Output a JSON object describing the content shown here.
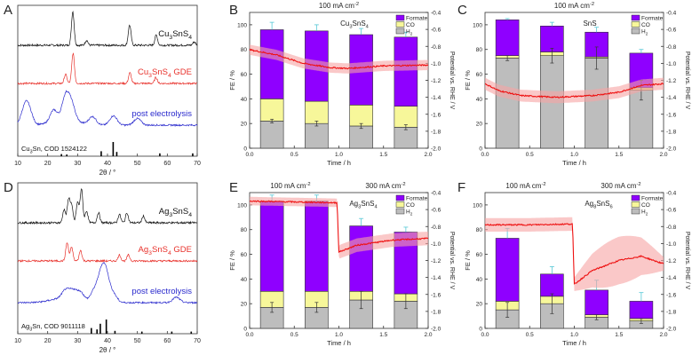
{
  "colors": {
    "formate": "#8f00ff",
    "co": "#f7f79a",
    "h2": "#bdbdbd",
    "potential": "#ee1111",
    "potential_band": "#f6a3a3",
    "xrd_ref": "#111111",
    "xrd_gde": "#e8302a",
    "xrd_post": "#2a2acd",
    "err": "#55c7d6"
  },
  "chart_data": [
    {
      "panel": "A",
      "type": "line",
      "subtype": "xrd",
      "xlabel": "2θ / °",
      "xlim": [
        10,
        70
      ],
      "xticks": [
        "10",
        "20",
        "30",
        "40",
        "50",
        "60",
        "70"
      ],
      "series": [
        {
          "name": "Cu3SnS4",
          "label_main": "Cu",
          "label_sub": "3",
          "label_rest": "SnS",
          "label_sub2": "4",
          "label_after": "",
          "label_color": "xrd_ref",
          "peaks": [
            [
              28.4,
              1.0
            ],
            [
              33.0,
              0.15
            ],
            [
              47.4,
              0.6
            ],
            [
              56.3,
              0.3
            ],
            [
              69.0,
              0.1
            ]
          ]
        },
        {
          "name": "Cu3SnS4 GDE",
          "label_main": "Cu",
          "label_sub": "3",
          "label_rest": "SnS",
          "label_sub2": "4",
          "label_after": " GDE",
          "label_color": "xrd_gde",
          "peaks": [
            [
              26.0,
              0.3
            ],
            [
              28.5,
              1.0
            ],
            [
              47.5,
              0.35
            ],
            [
              56.2,
              0.2
            ]
          ]
        },
        {
          "name": "post electrolysis",
          "label_main": "post electrolysis",
          "label_sub": "",
          "label_rest": "",
          "label_sub2": "",
          "label_after": "",
          "label_color": "xrd_post",
          "peaks": [
            [
              12.0,
              0.35
            ],
            [
              13.0,
              0.45
            ],
            [
              14.0,
              0.3
            ],
            [
              22.0,
              0.45
            ],
            [
              26.0,
              0.9
            ],
            [
              28.0,
              0.6
            ],
            [
              35.0,
              0.3
            ],
            [
              42.0,
              0.35
            ],
            [
              50.0,
              0.25
            ]
          ]
        }
      ],
      "reference": {
        "main": "Cu",
        "sub": "3",
        "rest": "Sn, COD 1524122",
        "sticks": [
          [
            37.9,
            0.35
          ],
          [
            41.9,
            1.0
          ],
          [
            43.1,
            0.3
          ],
          [
            57.5,
            0.2
          ],
          [
            68.5,
            0.2
          ],
          [
            24.6,
            0.15
          ],
          [
            26.4,
            0.12
          ]
        ]
      }
    },
    {
      "panel": "B",
      "type": "bar",
      "header": "100 mA cm",
      "header_sup": "-2",
      "inset": {
        "main": "Cu",
        "sub": "3",
        "rest": "SnS",
        "sub2": "4"
      },
      "xlabel": "Time / h",
      "ylabel": "FE / %",
      "ylabel2": "Potential vs. RHE / V",
      "xlim": [
        0,
        2
      ],
      "ylim": [
        0,
        110
      ],
      "y2lim": [
        -2.0,
        -0.4
      ],
      "xticks": [
        "0.0",
        "0.5",
        "1.0",
        "1.5",
        "2.0"
      ],
      "yticks": [
        "0",
        "20",
        "40",
        "60",
        "80",
        "100"
      ],
      "y2ticks": [
        "-0.4",
        "-0.6",
        "-0.8",
        "-1.0",
        "-1.2",
        "-1.4",
        "-1.6",
        "-1.8",
        "-2.0"
      ],
      "bar_x": [
        0.25,
        0.75,
        1.25,
        1.75
      ],
      "h2": [
        22,
        20,
        18,
        17
      ],
      "co": [
        18,
        18,
        17,
        17
      ],
      "formate": [
        56,
        57,
        57,
        56
      ],
      "err_total": [
        6,
        5,
        5,
        4
      ],
      "err_h2": [
        1.5,
        2,
        2,
        2
      ],
      "potential": [
        [
          0,
          -0.84
        ],
        [
          0.3,
          -0.9
        ],
        [
          0.6,
          -1.0
        ],
        [
          0.9,
          -1.05
        ],
        [
          1.1,
          -1.06
        ],
        [
          1.5,
          -1.03
        ],
        [
          2.0,
          -1.02
        ]
      ],
      "band_width": 0.06,
      "legend": [
        "Formate",
        "CO",
        "H"
      ],
      "legend_sub": [
        "",
        "",
        "2"
      ],
      "show_legend": true,
      "step_at": null
    },
    {
      "panel": "C",
      "type": "bar",
      "header": "100 mA cm",
      "header_sup": "-2",
      "inset": {
        "main": "SnS",
        "sub": "",
        "rest": "",
        "sub2": ""
      },
      "xlabel": "Time / h",
      "ylabel": "FE / %",
      "ylabel2": "Potential vs. RHE / V",
      "xlim": [
        0,
        2
      ],
      "ylim": [
        0,
        110
      ],
      "y2lim": [
        -2.0,
        -0.4
      ],
      "xticks": [
        "0.0",
        "0.5",
        "1.0",
        "1.5",
        "2.0"
      ],
      "yticks": [
        "0",
        "20",
        "40",
        "60",
        "80",
        "100"
      ],
      "y2ticks": [
        "-0.4",
        "-0.6",
        "-0.8",
        "-1.0",
        "-1.2",
        "-1.4",
        "-1.6",
        "-1.8",
        "-2.0"
      ],
      "bar_x": [
        0.25,
        0.75,
        1.25,
        1.75
      ],
      "h2": [
        73,
        75,
        73,
        47
      ],
      "co": [
        2,
        3,
        1,
        2
      ],
      "formate": [
        29,
        21,
        20,
        28
      ],
      "err_total": [
        1,
        3,
        4,
        3
      ],
      "err_h2": [
        2,
        6,
        9,
        8
      ],
      "potential": [
        [
          0,
          -1.24
        ],
        [
          0.15,
          -1.32
        ],
        [
          0.4,
          -1.38
        ],
        [
          0.8,
          -1.4
        ],
        [
          1.2,
          -1.38
        ],
        [
          1.5,
          -1.34
        ],
        [
          1.75,
          -1.26
        ],
        [
          2.0,
          -1.24
        ]
      ],
      "band_width": 0.07,
      "legend": [
        "Formate",
        "CO",
        "H"
      ],
      "legend_sub": [
        "",
        "",
        "2"
      ],
      "show_legend": true,
      "step_at": null
    },
    {
      "panel": "D",
      "type": "line",
      "subtype": "xrd",
      "xlabel": "2θ / °",
      "xlim": [
        10,
        70
      ],
      "xticks": [
        "10",
        "20",
        "30",
        "40",
        "50",
        "60",
        "70"
      ],
      "series": [
        {
          "name": "Ag3SnS4",
          "label_main": "Ag",
          "label_sub": "3",
          "label_rest": "SnS",
          "label_sub2": "4",
          "label_after": "",
          "label_color": "xrd_ref",
          "peaks": [
            [
              25.5,
              0.4
            ],
            [
              27.0,
              0.7
            ],
            [
              28.0,
              0.5
            ],
            [
              30.0,
              0.6
            ],
            [
              31.3,
              1.0
            ],
            [
              33.0,
              0.35
            ],
            [
              37.0,
              0.3
            ],
            [
              44.0,
              0.25
            ],
            [
              46.5,
              0.3
            ],
            [
              52.0,
              0.2
            ]
          ]
        },
        {
          "name": "Ag3SnS4 GDE",
          "label_main": "Ag",
          "label_sub": "3",
          "label_rest": "SnS",
          "label_sub2": "4",
          "label_after": " GDE",
          "label_color": "xrd_gde",
          "peaks": [
            [
              26.5,
              0.6
            ],
            [
              28.0,
              0.45
            ],
            [
              31.0,
              0.35
            ],
            [
              44.0,
              0.2
            ],
            [
              47.0,
              0.2
            ]
          ]
        },
        {
          "name": "post electrolysis",
          "label_main": "post electrolysis",
          "label_sub": "",
          "label_rest": "",
          "label_sub2": "",
          "label_after": "",
          "label_color": "xrd_post",
          "peaks": [
            [
              26.0,
              0.3
            ],
            [
              28.5,
              0.3
            ],
            [
              31.0,
              0.3
            ],
            [
              35.5,
              0.4
            ],
            [
              37.8,
              0.9
            ],
            [
              39.5,
              1.0
            ],
            [
              42.0,
              0.3
            ],
            [
              63.0,
              0.2
            ]
          ]
        }
      ],
      "reference": {
        "main": "Ag",
        "sub": "3",
        "rest": "Sn, COD 9011118",
        "sticks": [
          [
            34.6,
            0.4
          ],
          [
            37.6,
            0.7
          ],
          [
            39.6,
            1.0
          ],
          [
            42.5,
            0.2
          ],
          [
            51.5,
            0.15
          ],
          [
            61.5,
            0.15
          ],
          [
            68.0,
            0.15
          ],
          [
            36.5,
            0.3
          ]
        ]
      }
    },
    {
      "panel": "E",
      "type": "bar",
      "header": "100 mA cm",
      "header_sup": "-2",
      "header2": "300 mA cm",
      "header2_sup": "-2",
      "inset": {
        "main": "Ag",
        "sub": "3",
        "rest": "SnS",
        "sub2": "4"
      },
      "xlabel": "Time / h",
      "ylabel": "FE / %",
      "ylabel2": "Potential vs. RHE / V",
      "xlim": [
        0,
        2
      ],
      "ylim": [
        0,
        110
      ],
      "y2lim": [
        -2.0,
        -0.4
      ],
      "xticks": [
        "0.0",
        "0.5",
        "1.0",
        "1.5",
        "2.0"
      ],
      "yticks": [
        "0",
        "20",
        "40",
        "60",
        "80",
        "100"
      ],
      "y2ticks": [
        "-0.4",
        "-0.6",
        "-0.8",
        "-1.0",
        "-1.2",
        "-1.4",
        "-1.6",
        "-1.8",
        "-2.0"
      ],
      "bar_x": [
        0.25,
        0.75,
        1.25,
        1.75
      ],
      "h2": [
        17,
        17,
        23,
        22
      ],
      "co": [
        13,
        13,
        7,
        6
      ],
      "formate": [
        73,
        73,
        53,
        50
      ],
      "err_total": [
        5,
        5,
        6,
        4
      ],
      "err_h2": [
        4,
        4,
        7,
        6
      ],
      "potential": [
        [
          0,
          -0.5
        ],
        [
          0.5,
          -0.51
        ],
        [
          0.98,
          -0.52
        ],
        [
          1.0,
          -1.1
        ],
        [
          1.2,
          -1.02
        ],
        [
          1.6,
          -0.96
        ],
        [
          2.0,
          -0.94
        ]
      ],
      "band_width": 0.05,
      "legend": [
        "Formate",
        "CO",
        "H"
      ],
      "legend_sub": [
        "",
        "",
        "2"
      ],
      "show_legend": true,
      "step_at": 1.0
    },
    {
      "panel": "F",
      "type": "bar",
      "header": "100 mA cm",
      "header_sup": "-2",
      "header2": "300 mA cm",
      "header2_sup": "-2",
      "inset": {
        "main": "Ag",
        "sub": "8",
        "rest": "SnS",
        "sub2": "6"
      },
      "xlabel": "Time / h",
      "ylabel": "FE / %",
      "ylabel2": "Potential vs. RHE / V",
      "xlim": [
        0,
        2
      ],
      "ylim": [
        0,
        110
      ],
      "y2lim": [
        -2.0,
        -0.4
      ],
      "xticks": [
        "0.0",
        "0.5",
        "1.0",
        "1.5",
        "2.0"
      ],
      "yticks": [
        "0",
        "20",
        "40",
        "60",
        "80",
        "100"
      ],
      "y2ticks": [
        "-0.4",
        "-0.6",
        "-0.8",
        "-1.0",
        "-1.2",
        "-1.4",
        "-1.6",
        "-1.8",
        "-2.0"
      ],
      "bar_x": [
        0.25,
        0.75,
        1.25,
        1.75
      ],
      "h2": [
        15,
        20,
        9,
        6
      ],
      "co": [
        7,
        6,
        2,
        2
      ],
      "formate": [
        51,
        18,
        20,
        14
      ],
      "err_total": [
        8,
        6,
        8,
        7
      ],
      "err_h2": [
        6,
        8,
        2,
        2
      ],
      "potential": [
        [
          0,
          -0.78
        ],
        [
          0.5,
          -0.78
        ],
        [
          0.98,
          -0.77
        ],
        [
          1.0,
          -1.48
        ],
        [
          1.2,
          -1.32
        ],
        [
          1.5,
          -1.2
        ],
        [
          1.75,
          -1.15
        ],
        [
          2.0,
          -1.24
        ]
      ],
      "band_width": 0.08,
      "legend": [
        "Formate",
        "CO",
        "H"
      ],
      "legend_sub": [
        "",
        "",
        "2"
      ],
      "show_legend": true,
      "step_at": 1.0
    }
  ]
}
